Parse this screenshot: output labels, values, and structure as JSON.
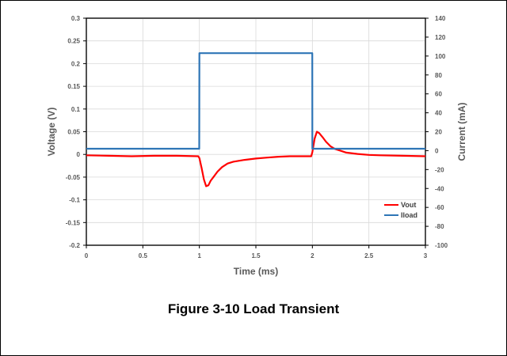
{
  "caption": "Figure 3-10 Load Transient",
  "chart_data": {
    "type": "line",
    "xlabel": "Time (ms)",
    "ylabel_left": "Voltage (V)",
    "ylabel_right": "Current (mA)",
    "xlim": [
      0,
      3
    ],
    "ylim_left": [
      -0.2,
      0.3
    ],
    "ylim_right": [
      -100,
      140
    ],
    "x_ticks": [
      0,
      0.5,
      1,
      1.5,
      2,
      2.5,
      3
    ],
    "x_tick_labels": [
      "0",
      "0.5",
      "1",
      "1.5",
      "2",
      "2.5",
      "3"
    ],
    "y_left_ticks": [
      -0.2,
      -0.15,
      -0.1,
      -0.05,
      0,
      0.05,
      0.1,
      0.15,
      0.2,
      0.25,
      0.3
    ],
    "y_left_tick_labels": [
      "-0.2",
      "-0.15",
      "-0.1",
      "-0.05",
      "0",
      "0.05",
      "0.1",
      "0.15",
      "0.2",
      "0.25",
      "0.3"
    ],
    "y_right_ticks": [
      -100,
      -80,
      -60,
      -40,
      -20,
      0,
      20,
      40,
      60,
      80,
      100,
      120,
      140
    ],
    "y_right_tick_labels": [
      "-100",
      "-80",
      "-60",
      "-40",
      "-20",
      "0",
      "20",
      "40",
      "60",
      "80",
      "100",
      "120",
      "140"
    ],
    "grid": true,
    "legend_position": "bottom-right",
    "series": [
      {
        "name": "Vout",
        "axis": "left",
        "color": "#ff0000",
        "x": [
          0,
          0.2,
          0.4,
          0.6,
          0.8,
          0.99,
          1.0,
          1.02,
          1.04,
          1.06,
          1.08,
          1.1,
          1.13,
          1.16,
          1.2,
          1.25,
          1.3,
          1.4,
          1.5,
          1.6,
          1.7,
          1.8,
          1.9,
          1.99,
          2.0,
          2.02,
          2.04,
          2.06,
          2.09,
          2.12,
          2.16,
          2.2,
          2.25,
          2.3,
          2.4,
          2.5,
          2.6,
          2.8,
          3.0
        ],
        "y": [
          -0.002,
          -0.003,
          -0.004,
          -0.003,
          -0.003,
          -0.004,
          -0.008,
          -0.03,
          -0.055,
          -0.07,
          -0.068,
          -0.058,
          -0.048,
          -0.038,
          -0.028,
          -0.02,
          -0.016,
          -0.012,
          -0.009,
          -0.007,
          -0.005,
          -0.004,
          -0.004,
          -0.004,
          0.005,
          0.035,
          0.05,
          0.047,
          0.038,
          0.028,
          0.018,
          0.012,
          0.008,
          0.004,
          0.001,
          -0.001,
          -0.002,
          -0.003,
          -0.004
        ]
      },
      {
        "name": "Iload",
        "axis": "right",
        "color": "#2e75b6",
        "x": [
          0,
          0.999,
          1.0,
          1.999,
          2.0,
          3.0
        ],
        "y": [
          2,
          2,
          103,
          103,
          2,
          2
        ]
      }
    ]
  }
}
